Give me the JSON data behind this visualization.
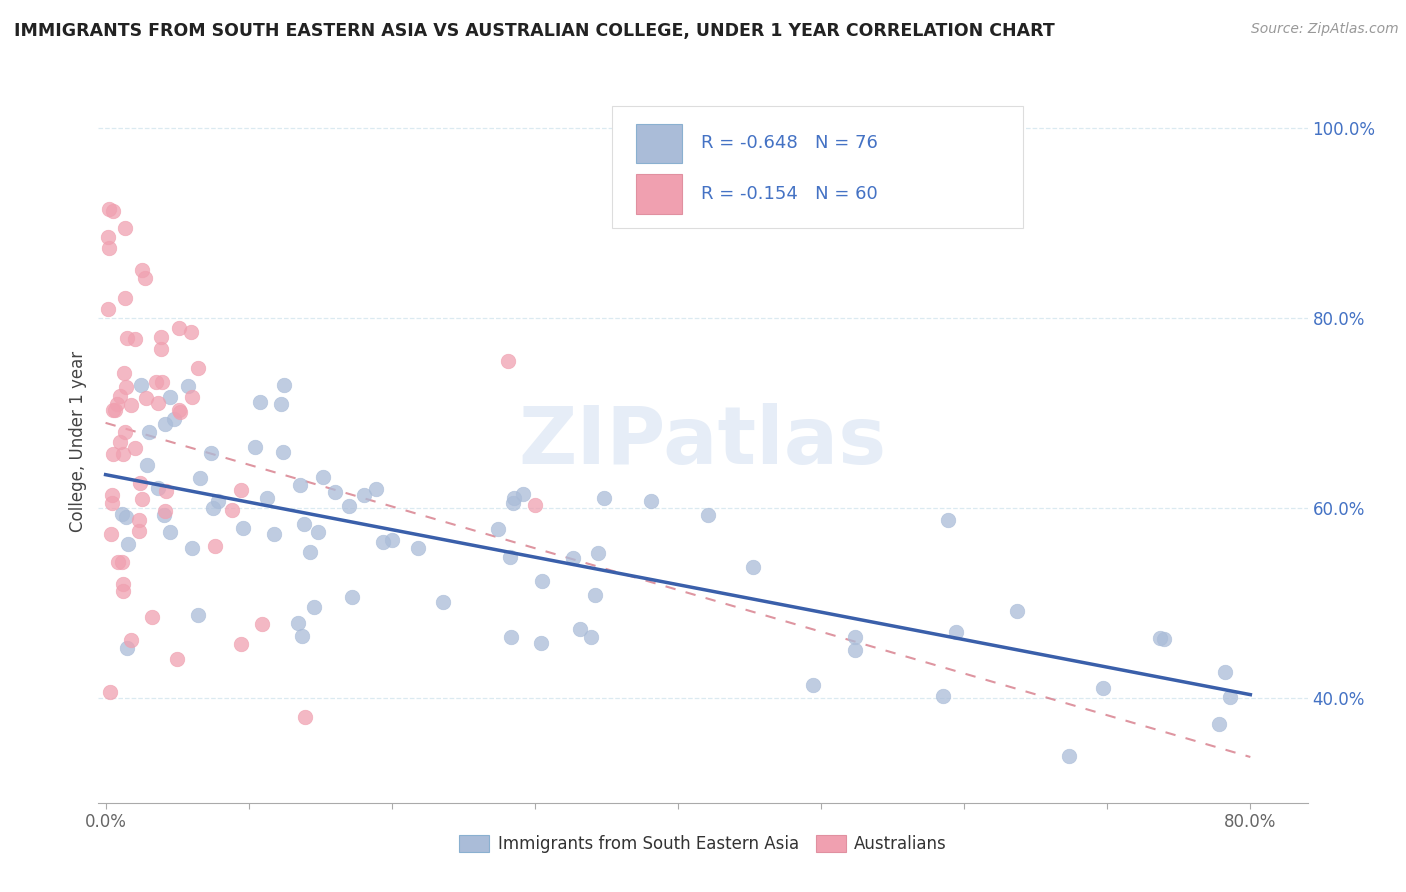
{
  "title": "IMMIGRANTS FROM SOUTH EASTERN ASIA VS AUSTRALIAN COLLEGE, UNDER 1 YEAR CORRELATION CHART",
  "source": "Source: ZipAtlas.com",
  "ylabel": "College, Under 1 year",
  "xlim": [
    -0.005,
    0.84
  ],
  "ylim": [
    0.29,
    1.05
  ],
  "xtick_positions": [
    0.0,
    0.1,
    0.2,
    0.3,
    0.4,
    0.5,
    0.6,
    0.7,
    0.8
  ],
  "xticklabels": [
    "0.0%",
    "",
    "",
    "",
    "",
    "",
    "",
    "",
    "80.0%"
  ],
  "ytick_positions": [
    0.4,
    0.6,
    0.8,
    1.0
  ],
  "yticklabels": [
    "40.0%",
    "60.0%",
    "80.0%",
    "100.0%"
  ],
  "blue_scatter_color": "#aabcd8",
  "blue_line_color": "#3a5faa",
  "pink_scatter_color": "#f0a0b0",
  "pink_line_color": "#d06878",
  "watermark_text": "ZIPatlas",
  "legend_label_blue": "Immigrants from South Eastern Asia",
  "legend_label_pink": "Australians",
  "blue_r": -0.648,
  "blue_n": 76,
  "pink_r": -0.154,
  "pink_n": 60,
  "legend_text_color": "#4472c4",
  "grid_color": "#d8e8f0",
  "title_color": "#222222",
  "ylabel_color": "#444444",
  "xtick_color": "#666666",
  "ytick_color": "#4472c4"
}
